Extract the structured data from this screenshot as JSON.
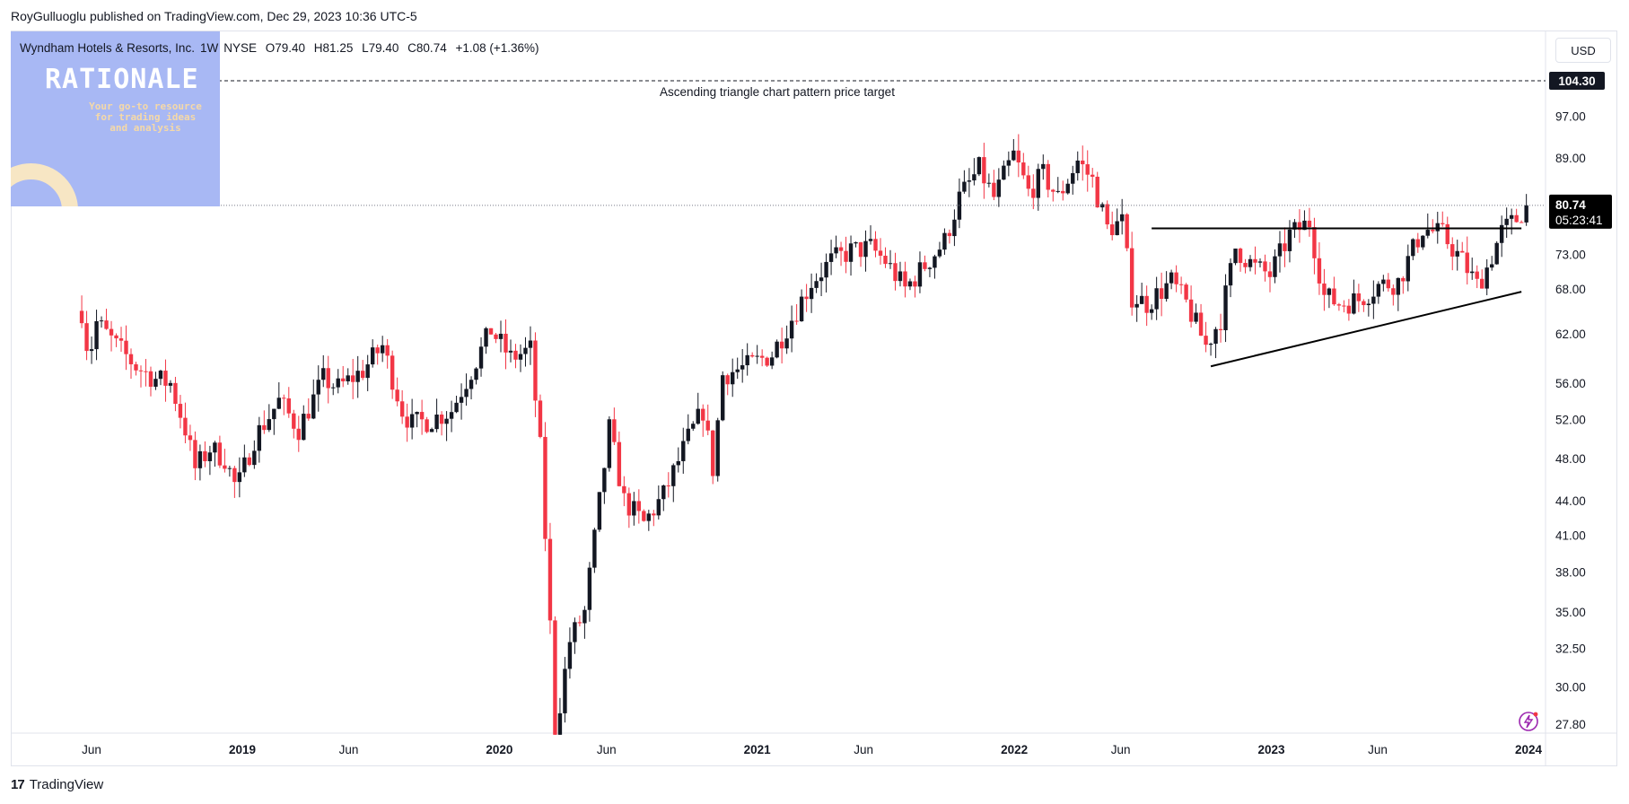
{
  "header": {
    "published": "RoyGulluoglu published on TradingView.com, Dec 29, 2023 10:36 UTC-5"
  },
  "legend": {
    "symbol": "Wyndham Hotels & Resorts, Inc.",
    "interval": "1W",
    "exchange": "NYSE",
    "open": "O79.40",
    "high": "H81.25",
    "low": "L79.40",
    "close": "C80.74",
    "change": "+1.08 (+1.36%)"
  },
  "currency": "USD",
  "logo": {
    "title": "RATIONALE",
    "tagline": "Your go-to resource for trading ideas and analysis"
  },
  "footer": {
    "brand": "TradingView",
    "icon": "tradingview-logo-icon"
  },
  "colors": {
    "up": "#131722",
    "down": "#f23645",
    "line": "#000000",
    "dotted": "#787b86"
  },
  "chart_data": {
    "type": "candlestick",
    "title": "",
    "xlabel": "",
    "ylabel": "",
    "scale": "log",
    "ylim": [
      27.0,
      108.0
    ],
    "y_ticks": [
      "104.30",
      "97.00",
      "89.00",
      "80.74",
      "73.00",
      "68.00",
      "62.00",
      "56.00",
      "52.00",
      "48.00",
      "44.00",
      "41.00",
      "38.00",
      "35.00",
      "32.50",
      "30.00",
      "27.80"
    ],
    "x_ticks": [
      {
        "label": "Jun",
        "date": "2018-06-01",
        "bold": false
      },
      {
        "label": "2019",
        "date": "2019-01-01",
        "bold": true
      },
      {
        "label": "Jun",
        "date": "2019-06-01",
        "bold": false
      },
      {
        "label": "2020",
        "date": "2020-01-01",
        "bold": true
      },
      {
        "label": "Jun",
        "date": "2020-06-01",
        "bold": false
      },
      {
        "label": "2021",
        "date": "2021-01-01",
        "bold": true
      },
      {
        "label": "Jun",
        "date": "2021-06-01",
        "bold": false
      },
      {
        "label": "2022",
        "date": "2022-01-01",
        "bold": true
      },
      {
        "label": "Jun",
        "date": "2022-06-01",
        "bold": false
      },
      {
        "label": "2023",
        "date": "2023-01-01",
        "bold": true
      },
      {
        "label": "Jun",
        "date": "2023-06-01",
        "bold": false
      },
      {
        "label": "2024",
        "date": "2024-01-01",
        "bold": true
      }
    ],
    "last_price": {
      "label": "80.74",
      "countdown": "05:23:41",
      "value": 80.74
    },
    "price_target": {
      "label": "104.30",
      "value": 104.3,
      "annotation": "Ascending triangle chart pattern price target"
    },
    "resistance_line": {
      "from": [
        "2022-07-15",
        77.0
      ],
      "to": [
        "2023-12-22",
        77.0
      ]
    },
    "support_line": {
      "from": [
        "2022-10-07",
        58.0
      ],
      "to": [
        "2023-12-22",
        67.6
      ]
    },
    "price_path": [
      [
        "2018-05-18",
        65.0
      ],
      [
        "2018-05-28",
        59.0
      ],
      [
        "2018-06-08",
        63.5
      ],
      [
        "2018-07-06",
        60.5
      ],
      [
        "2018-08-03",
        58.0
      ],
      [
        "2018-08-31",
        56.5
      ],
      [
        "2018-09-21",
        56.0
      ],
      [
        "2018-10-12",
        51.0
      ],
      [
        "2018-10-26",
        47.0
      ],
      [
        "2018-11-16",
        49.0
      ],
      [
        "2018-12-07",
        48.0
      ],
      [
        "2018-12-24",
        45.0
      ],
      [
        "2019-01-18",
        50.0
      ],
      [
        "2019-02-22",
        54.0
      ],
      [
        "2019-03-22",
        51.0
      ],
      [
        "2019-04-26",
        56.5
      ],
      [
        "2019-05-17",
        55.5
      ],
      [
        "2019-06-21",
        57.5
      ],
      [
        "2019-07-19",
        60.5
      ],
      [
        "2019-08-16",
        53.0
      ],
      [
        "2019-08-30",
        51.5
      ],
      [
        "2019-09-27",
        52.0
      ],
      [
        "2019-10-25",
        53.0
      ],
      [
        "2019-11-22",
        57.5
      ],
      [
        "2019-12-20",
        62.5
      ],
      [
        "2020-01-17",
        59.0
      ],
      [
        "2020-02-14",
        60.0
      ],
      [
        "2020-02-28",
        49.0
      ],
      [
        "2020-03-06",
        41.0
      ],
      [
        "2020-03-13",
        34.0
      ],
      [
        "2020-03-20",
        27.5
      ],
      [
        "2020-03-27",
        29.0
      ],
      [
        "2020-04-10",
        33.0
      ],
      [
        "2020-05-01",
        35.0
      ],
      [
        "2020-06-05",
        51.0
      ],
      [
        "2020-06-26",
        44.0
      ],
      [
        "2020-07-24",
        42.0
      ],
      [
        "2020-08-21",
        44.5
      ],
      [
        "2020-09-25",
        50.0
      ],
      [
        "2020-10-16",
        53.0
      ],
      [
        "2020-10-30",
        47.0
      ],
      [
        "2020-11-13",
        57.0
      ],
      [
        "2020-12-18",
        58.0
      ],
      [
        "2021-01-22",
        59.5
      ],
      [
        "2021-02-19",
        64.0
      ],
      [
        "2021-03-19",
        69.0
      ],
      [
        "2021-04-16",
        72.0
      ],
      [
        "2021-05-14",
        73.5
      ],
      [
        "2021-06-11",
        74.0
      ],
      [
        "2021-07-02",
        72.0
      ],
      [
        "2021-07-30",
        68.0
      ],
      [
        "2021-08-20",
        70.5
      ],
      [
        "2021-09-24",
        75.0
      ],
      [
        "2021-10-15",
        82.0
      ],
      [
        "2021-11-12",
        87.0
      ],
      [
        "2021-12-03",
        82.0
      ],
      [
        "2021-12-31",
        89.5
      ],
      [
        "2022-01-21",
        83.0
      ],
      [
        "2022-02-11",
        86.0
      ],
      [
        "2022-03-04",
        82.0
      ],
      [
        "2022-04-01",
        88.5
      ],
      [
        "2022-04-22",
        85.0
      ],
      [
        "2022-05-13",
        77.0
      ],
      [
        "2022-06-03",
        78.0
      ],
      [
        "2022-06-17",
        67.0
      ],
      [
        "2022-07-08",
        66.0
      ],
      [
        "2022-08-12",
        69.0
      ],
      [
        "2022-09-02",
        66.0
      ],
      [
        "2022-09-30",
        60.5
      ],
      [
        "2022-10-21",
        64.0
      ],
      [
        "2022-11-11",
        74.0
      ],
      [
        "2022-12-09",
        71.0
      ],
      [
        "2022-12-30",
        70.0
      ],
      [
        "2023-01-27",
        76.0
      ],
      [
        "2023-02-24",
        78.0
      ],
      [
        "2023-03-17",
        67.0
      ],
      [
        "2023-04-07",
        66.0
      ],
      [
        "2023-05-05",
        66.5
      ],
      [
        "2023-06-02",
        68.5
      ],
      [
        "2023-06-30",
        69.0
      ],
      [
        "2023-08-04",
        77.0
      ],
      [
        "2023-09-01",
        76.0
      ],
      [
        "2023-09-29",
        72.0
      ],
      [
        "2023-10-20",
        68.5
      ],
      [
        "2023-11-03",
        71.0
      ],
      [
        "2023-11-24",
        76.5
      ],
      [
        "2023-12-15",
        78.5
      ],
      [
        "2023-12-29",
        80.74
      ]
    ]
  }
}
